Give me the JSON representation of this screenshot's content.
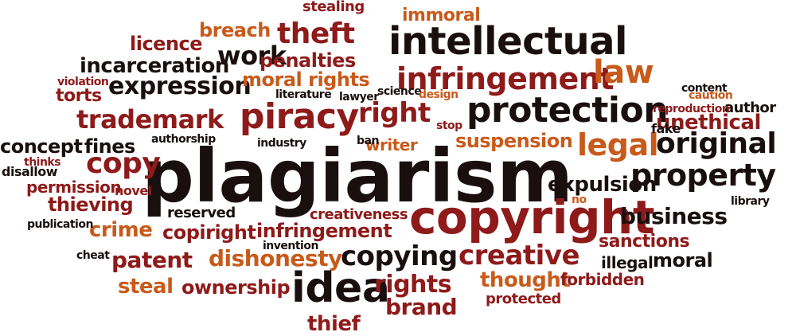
{
  "colors": {
    "black": "#1a0f0f",
    "dark_red": "#8e1a1a",
    "orange": "#c85a1a",
    "brick": "#a83a20",
    "rust": "#b04423"
  },
  "words": [
    "plagiarism",
    "copyright",
    "intellectual",
    "infringement",
    "protection",
    "piracy",
    "trademark",
    "expression",
    "incarceration",
    "licence",
    "breach",
    "theft",
    "work",
    "penalties",
    "moral rights",
    "stealing",
    "immoral",
    "law",
    "legal",
    "original",
    "property",
    "business",
    "unethical",
    "copy",
    "concept",
    "fines",
    "permission",
    "thieving",
    "crime",
    "copiright",
    "infringement",
    "patent",
    "dishonesty",
    "copying",
    "creative",
    "idea",
    "rights",
    "brand",
    "thief",
    "steal",
    "ownership",
    "thought",
    "forbidden",
    "protected",
    "sanctions",
    "moral",
    "illegal",
    "expulsion",
    "suspension",
    "right",
    "writer",
    "reserved",
    "creativeness",
    "industry",
    "author",
    "content",
    "reproduction",
    "caution",
    "fake",
    "library",
    "torts",
    "violation",
    "lawyer",
    "science",
    "design",
    "literature",
    "authorship",
    "disallow",
    "novel",
    "publication",
    "cheat",
    "invention",
    "thinks",
    "stop",
    "ban",
    "no"
  ]
}
